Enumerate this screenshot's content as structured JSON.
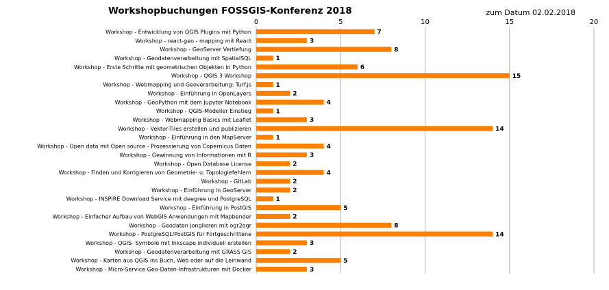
{
  "chart_data": {
    "type": "bar",
    "orientation": "horizontal",
    "title": "Workshopbuchungen FOSSGIS-Konferenz 2018",
    "subtitle": "zum Datum 02.02.2018",
    "categories": [
      "Workshop - Entwicklung von QGIS Plugins mit Python",
      "Workshop - react-geo - mapping mit React",
      "Workshop - GeoServer Vertiefung",
      "Workshop - Geodatenverarbeitung mit SpatialSQL",
      "Workshop - Erste Schritte mit geometrischen Objekten in Python",
      "Workshop - QGIS 3 Workshop",
      "Workshop - Webmapping und Geoverarbeitung: Turf.js",
      "Workshop - Einführung in OpenLayers",
      "Workshop - GeoPython mit dem Jupyter Notebook",
      "Workshop - QGIS-Modeller Einstieg",
      "Workshop - Webmapping Basics mit Leaflet",
      "Workshop - Vektor-Tiles erstellen und publizieren",
      "Workshop - Einführung in den MapServer",
      "Workshop - Open data mit Open source - Prozessierung von Copernicus Daten",
      "Workshop - Gewinnung von Informationen mit R",
      "Workshop - Open Database License",
      "Workshop - Finden und Korrigieren von Geometrie- u. Topologiefehlern",
      "Workshop - GitLab",
      "Workshop - Einführung in GeoServer",
      "Workshop - INSPIRE Download Service mit deegree und PostgreSQL",
      "Workshop - Einführung in PostGIS",
      "Workshop - Einfacher Aufbau von WebGIS Anwendungen mit Mapbender",
      "Workshop - Geodaten jonglieren mit ogr2ogr",
      "Workshop - PostgreSQL/PostGIS für Fortgeschrittene",
      "Workshop - QGIS- Symbole mit Inkscape individuell erstellen",
      "Workshop - Geodatenverarbeitung mit GRASS GIS",
      "Workshop - Karten aus QGIS ins Buch, Web oder auf die Leinwand",
      "Workshop - Micro-Service Geo-Daten-Infrastrukturen mit Docker"
    ],
    "values": [
      7,
      3,
      8,
      1,
      6,
      15,
      1,
      2,
      4,
      1,
      3,
      14,
      1,
      4,
      3,
      2,
      4,
      2,
      2,
      1,
      5,
      2,
      8,
      14,
      3,
      2,
      5,
      3
    ],
    "xlim": [
      0,
      20
    ],
    "xticks": [
      "0",
      "5",
      "10",
      "15",
      "20"
    ],
    "xaxis_position": "top",
    "grid": "vertical lines at major ticks",
    "legend": "none",
    "bar_color": "#ff8000",
    "grid_color": "#b3b3b3"
  }
}
